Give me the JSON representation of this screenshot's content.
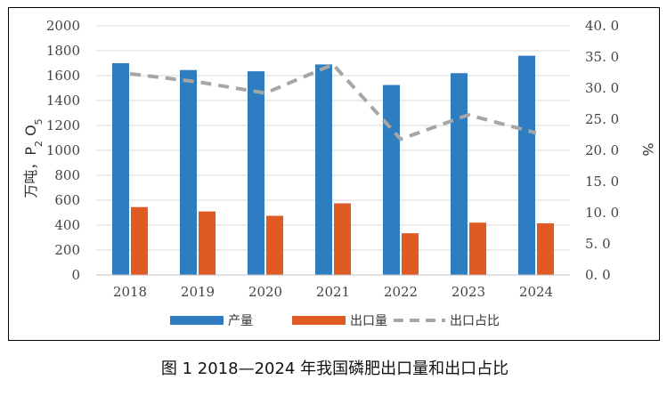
{
  "chart_data": {
    "type": "bar",
    "categories": [
      "2018",
      "2019",
      "2020",
      "2021",
      "2022",
      "2023",
      "2024"
    ],
    "series": [
      {
        "name": "产量",
        "type": "bar",
        "axis": "left",
        "color": "#2e7dc0",
        "values": [
          1700,
          1645,
          1635,
          1690,
          1525,
          1620,
          1760
        ]
      },
      {
        "name": "出口量",
        "type": "bar",
        "axis": "left",
        "color": "#e05a24",
        "values": [
          545,
          510,
          475,
          575,
          335,
          420,
          415
        ]
      },
      {
        "name": "出口占比",
        "type": "line",
        "style": "dashed",
        "axis": "right",
        "color": "#a6a6a6",
        "values": [
          32.3,
          31.0,
          29.2,
          33.8,
          21.8,
          25.7,
          22.8
        ]
      }
    ],
    "y_left": {
      "label_parts": [
        "万吨，P",
        "2",
        " O",
        "5"
      ],
      "ylim": [
        0,
        2000
      ],
      "ticks": [
        "0",
        "200",
        "400",
        "600",
        "800",
        "1000",
        "1200",
        "1400",
        "1600",
        "1800",
        "2000"
      ]
    },
    "y_right": {
      "label": "%",
      "ylim": [
        0,
        40
      ],
      "ticks": [
        "0. 0",
        "5. 0",
        "10. 0",
        "15. 0",
        "20. 0",
        "25. 0",
        "30. 0",
        "35. 0",
        "40. 0"
      ]
    },
    "grid": true,
    "legend_position": "bottom",
    "caption": "图 1 2018—2024 年我国磷肥出口量和出口占比"
  }
}
